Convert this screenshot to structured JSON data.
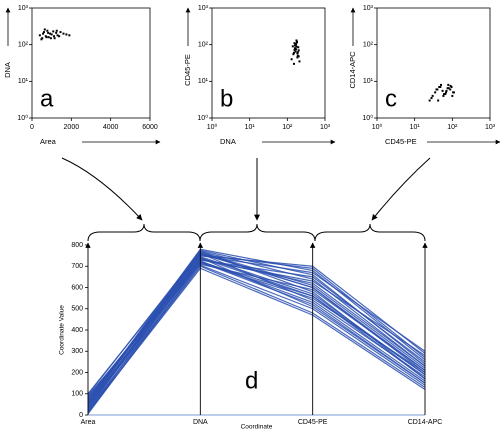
{
  "chart_data": [
    {
      "type": "scatter",
      "label": "a",
      "xlabel": "Area",
      "ylabel": "DNA",
      "color": "#000000",
      "xlim": [
        0,
        6000
      ],
      "xticks": [
        0,
        2000,
        4000,
        6000
      ],
      "xlog": false,
      "ylim": [
        1,
        1000
      ],
      "yticks": [
        {
          "value": 1,
          "label": "10⁰"
        },
        {
          "value": 10,
          "label": "10¹"
        },
        {
          "value": 100,
          "label": "10²"
        },
        {
          "value": 1000,
          "label": "10³"
        }
      ],
      "ylog": true,
      "x": [
        400,
        520,
        610,
        700,
        780,
        850,
        920,
        1000,
        1080,
        1150,
        1230,
        1300,
        1380,
        1450,
        1600,
        1750,
        1900,
        480,
        650,
        820,
        960,
        1120,
        1260,
        560,
        740
      ],
      "values": [
        180,
        150,
        220,
        170,
        240,
        160,
        200,
        190,
        230,
        150,
        210,
        180,
        170,
        220,
        200,
        190,
        180,
        140,
        260,
        210,
        150,
        170,
        240,
        200,
        160
      ]
    },
    {
      "type": "scatter",
      "label": "b",
      "xlabel": "DNA",
      "ylabel": "CD45-PE",
      "color": "#000000",
      "xlim": [
        1,
        1000
      ],
      "xticks": [
        {
          "value": 1,
          "label": "10⁰"
        },
        {
          "value": 10,
          "label": "10¹"
        },
        {
          "value": 100,
          "label": "10²"
        },
        {
          "value": 1000,
          "label": "10³"
        }
      ],
      "xlog": true,
      "ylim": [
        1,
        1000
      ],
      "yticks": [
        {
          "value": 1,
          "label": "10⁰"
        },
        {
          "value": 10,
          "label": "10¹"
        },
        {
          "value": 100,
          "label": "10²"
        },
        {
          "value": 1000,
          "label": "10³"
        }
      ],
      "ylog": true,
      "x": [
        130,
        150,
        160,
        170,
        180,
        190,
        200,
        140,
        155,
        175,
        185,
        165,
        195,
        210,
        145,
        170,
        160,
        180,
        150,
        190,
        175,
        165,
        200,
        155,
        185
      ],
      "values": [
        40,
        60,
        80,
        100,
        120,
        50,
        70,
        90,
        110,
        130,
        45,
        65,
        85,
        35,
        55,
        75,
        95,
        115,
        30,
        62,
        88,
        105,
        48,
        72,
        58
      ]
    },
    {
      "type": "scatter",
      "label": "c",
      "xlabel": "CD45-PE",
      "ylabel": "CD14-APC",
      "color": "#000000",
      "xlim": [
        1,
        1000
      ],
      "xticks": [
        {
          "value": 1,
          "label": "10⁰"
        },
        {
          "value": 10,
          "label": "10¹"
        },
        {
          "value": 100,
          "label": "10²"
        },
        {
          "value": 1000,
          "label": "10³"
        }
      ],
      "xlog": true,
      "ylim": [
        1,
        1000
      ],
      "yticks": [
        {
          "value": 1,
          "label": "10⁰"
        },
        {
          "value": 10,
          "label": "10¹"
        },
        {
          "value": 100,
          "label": "10²"
        },
        {
          "value": 1000,
          "label": "10³"
        }
      ],
      "ylog": true,
      "x": [
        25,
        30,
        35,
        40,
        45,
        50,
        60,
        70,
        80,
        90,
        100,
        110,
        28,
        38,
        48,
        58,
        68,
        78,
        88,
        42,
        55,
        65,
        75,
        95,
        105
      ],
      "values": [
        3,
        4,
        5,
        6,
        7,
        8,
        4.5,
        5.5,
        6.5,
        7.5,
        4,
        5,
        3.5,
        6,
        7,
        4,
        5,
        8,
        6,
        3,
        5.5,
        4.5,
        6.5,
        7,
        5
      ]
    },
    {
      "type": "parallel",
      "label": "d",
      "xlabel": "Coordinate",
      "ylabel": "Coordinate Value",
      "color": "#2b50b0",
      "categories": [
        "Area",
        "DNA",
        "CD45-PE",
        "CD14-APC"
      ],
      "ylim": [
        0,
        800
      ],
      "yticks": [
        0,
        100,
        200,
        300,
        400,
        500,
        600,
        700,
        800
      ],
      "series": [
        {
          "values": [
            10,
            700,
            480,
            130
          ]
        },
        {
          "values": [
            20,
            720,
            520,
            150
          ]
        },
        {
          "values": [
            30,
            740,
            560,
            170
          ]
        },
        {
          "values": [
            40,
            760,
            600,
            200
          ]
        },
        {
          "values": [
            50,
            770,
            640,
            230
          ]
        },
        {
          "values": [
            60,
            780,
            680,
            260
          ]
        },
        {
          "values": [
            70,
            750,
            700,
            290
          ]
        },
        {
          "values": [
            80,
            730,
            650,
            250
          ]
        },
        {
          "values": [
            90,
            710,
            590,
            210
          ]
        },
        {
          "values": [
            100,
            760,
            540,
            180
          ]
        },
        {
          "values": [
            15,
            690,
            470,
            120
          ]
        },
        {
          "values": [
            25,
            705,
            500,
            140
          ]
        },
        {
          "values": [
            35,
            725,
            530,
            160
          ]
        },
        {
          "values": [
            45,
            745,
            570,
            190
          ]
        },
        {
          "values": [
            55,
            765,
            610,
            220
          ]
        },
        {
          "values": [
            65,
            775,
            660,
            240
          ]
        },
        {
          "values": [
            75,
            755,
            690,
            270
          ]
        },
        {
          "values": [
            85,
            735,
            620,
            230
          ]
        },
        {
          "values": [
            5,
            715,
            550,
            200
          ]
        },
        {
          "values": [
            95,
            770,
            580,
            170
          ]
        },
        {
          "values": [
            12,
            740,
            510,
            150
          ]
        },
        {
          "values": [
            42,
            730,
            630,
            280
          ]
        },
        {
          "values": [
            62,
            750,
            670,
            300
          ]
        },
        {
          "values": [
            28,
            760,
            600,
            210
          ]
        },
        {
          "values": [
            52,
            720,
            560,
            190
          ]
        }
      ]
    }
  ]
}
